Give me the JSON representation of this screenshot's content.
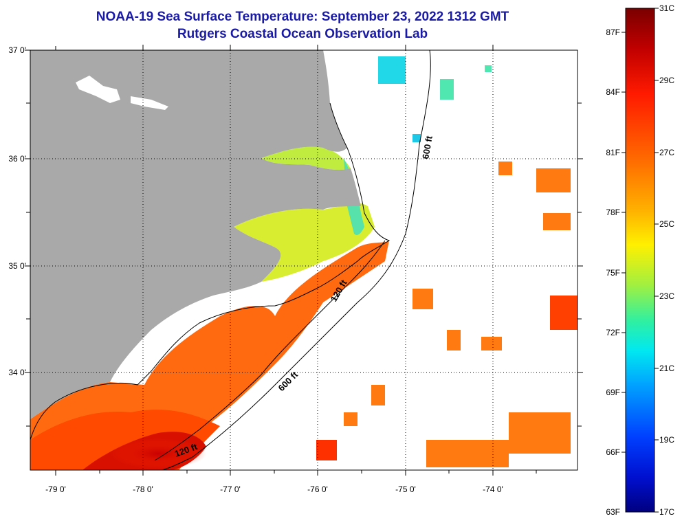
{
  "header": {
    "title": "NOAA-19 Sea Surface Temperature:  September 23, 2022 1312 GMT",
    "subtitle": "Rutgers Coastal Ocean Observation Lab"
  },
  "axes": {
    "lat_labels": [
      "37 0'",
      "36 0'",
      "35 0'",
      "34 0'"
    ],
    "lon_labels": [
      "-79 0'",
      "-78 0'",
      "-77 0'",
      "-76 0'",
      "-75 0'",
      "-74 0'"
    ]
  },
  "contours": {
    "labels": [
      "600 ft",
      "120 ft",
      "600 ft",
      "120 ft"
    ]
  },
  "colorbar": {
    "fahrenheit": [
      "87F",
      "84F",
      "81F",
      "78F",
      "75F",
      "72F",
      "69F",
      "66F",
      "63F"
    ],
    "celsius": [
      "31C",
      "29C",
      "27C",
      "25C",
      "23C",
      "21C",
      "19C",
      "17C"
    ],
    "colors": [
      "#7a0000",
      "#c00000",
      "#ff1a00",
      "#ff6a00",
      "#ffa800",
      "#ffe000",
      "#c8f000",
      "#60f060",
      "#00e8d0",
      "#00b8ff",
      "#0070ff",
      "#0020e0",
      "#000090"
    ]
  },
  "colors": {
    "land": "#a9a9a9",
    "ocean_nodata": "#ffffff",
    "sst_warm": "#ff5a00",
    "sst_hot": "#e01000",
    "sound_water": "#d8ec30",
    "cool_water": "#40e8d0"
  }
}
